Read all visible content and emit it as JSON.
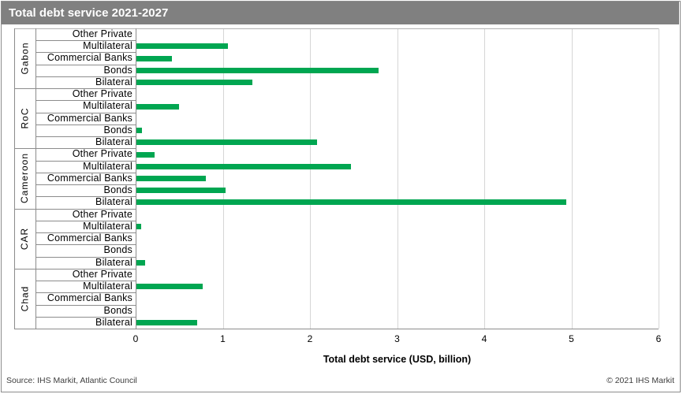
{
  "header": {
    "title": "Total debt service 2021-2027"
  },
  "footer": {
    "source": "Source: IHS Markit, Atlantic Council",
    "copyright": "© 2021 IHS Markit"
  },
  "colors": {
    "bar_green": "#00a651",
    "title_bar_gray": "#808080",
    "gridline_gray": "#d6d6d6",
    "border_gray": "#8c8c8c"
  },
  "chart_data": {
    "type": "bar",
    "orientation": "horizontal",
    "title": "Total debt service 2021-2027",
    "xlabel": "Total debt service (USD, billion)",
    "xlim": [
      0,
      6
    ],
    "xticks": [
      0,
      1,
      2,
      3,
      4,
      5,
      6
    ],
    "grid": true,
    "legend": "none",
    "bar_color": "#00a651",
    "creditor_types_top_to_bottom": [
      "Other Private",
      "Multilateral",
      "Commercial Banks",
      "Bonds",
      "Bilateral"
    ],
    "groups": [
      {
        "country": "Gabon",
        "values": [
          0,
          1.05,
          0.41,
          2.78,
          1.33
        ]
      },
      {
        "country": "RoC",
        "values": [
          0,
          0.49,
          0,
          0.06,
          2.07
        ]
      },
      {
        "country": "Cameroon",
        "values": [
          0.21,
          2.46,
          0.8,
          1.02,
          4.93
        ]
      },
      {
        "country": "CAR",
        "values": [
          0,
          0.05,
          0,
          0,
          0.1
        ]
      },
      {
        "country": "Chad",
        "values": [
          0,
          0.76,
          0,
          0,
          0.7
        ]
      }
    ]
  }
}
